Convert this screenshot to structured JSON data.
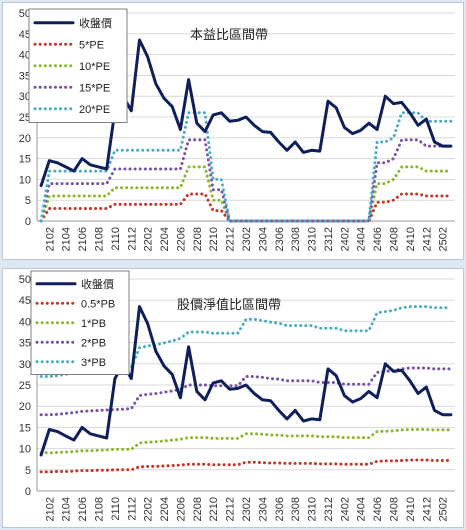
{
  "colors": {
    "price": "#0f1f5c",
    "band1": "#c0392b",
    "band2": "#8ab82f",
    "band3": "#7a52a8",
    "band4": "#4bacc6",
    "grid": "#d9d9d9",
    "axis_text": "#333333",
    "background": "#dfe8f2"
  },
  "chart_data": [
    {
      "type": "line",
      "title": "本益比區間帶",
      "xlabel": "",
      "ylabel": "",
      "ylim": [
        0,
        50
      ],
      "yticks": [
        0,
        5,
        10,
        15,
        20,
        25,
        30,
        35,
        40,
        45,
        50
      ],
      "x": [
        "2101",
        "2102",
        "2103",
        "2104",
        "2105",
        "2106",
        "2107",
        "2108",
        "2109",
        "2110",
        "2111",
        "2112",
        "2201",
        "2202",
        "2203",
        "2204",
        "2205",
        "2206",
        "2207",
        "2208",
        "2209",
        "2210",
        "2211",
        "2212",
        "2301",
        "2302",
        "2303",
        "2304",
        "2305",
        "2306",
        "2307",
        "2308",
        "2309",
        "2310",
        "2311",
        "2312",
        "2401",
        "2402",
        "2403",
        "2404",
        "2405",
        "2406",
        "2407",
        "2408",
        "2409",
        "2410",
        "2411",
        "2412",
        "2501",
        "2502",
        "2503"
      ],
      "xtick_labels": [
        "2102",
        "2104",
        "2106",
        "2108",
        "2110",
        "2112",
        "2202",
        "2204",
        "2206",
        "2208",
        "2210",
        "2212",
        "2302",
        "2304",
        "2306",
        "2308",
        "2310",
        "2312",
        "2402",
        "2404",
        "2406",
        "2408",
        "2410",
        "2412",
        "2502"
      ],
      "grid": true,
      "legend_position": "top-left",
      "series": [
        {
          "name": "收盤價",
          "style": "solid",
          "color_key": "price",
          "values": [
            8.5,
            14.5,
            14,
            13,
            12,
            15,
            13.5,
            13,
            12.5,
            26.5,
            30,
            26.5,
            43.5,
            39.5,
            33,
            29.5,
            27.5,
            22,
            34,
            23.5,
            21.5,
            25.5,
            26,
            24,
            24.2,
            25,
            23,
            21.5,
            21.3,
            19,
            17,
            19,
            16.5,
            17,
            16.8,
            28.8,
            27.2,
            22.5,
            21,
            21.8,
            23.5,
            22,
            30,
            28.2,
            28.5,
            26,
            23,
            24.5,
            19,
            18,
            18
          ]
        },
        {
          "name": "5*PE",
          "style": "dotted",
          "color_key": "band1",
          "values": [
            0,
            3,
            3,
            3,
            3,
            3,
            3,
            3,
            3,
            4,
            4,
            4,
            4,
            4,
            4,
            4,
            4,
            4,
            6.5,
            6.5,
            6.5,
            2.5,
            2.5,
            0,
            0,
            0,
            0,
            0,
            0,
            0,
            0,
            0,
            0,
            0,
            0,
            0,
            0,
            0,
            0,
            0,
            0,
            4.5,
            4.5,
            5,
            6.5,
            6.5,
            6.5,
            6,
            6,
            6,
            6
          ]
        },
        {
          "name": "10*PE",
          "style": "dotted",
          "color_key": "band2",
          "values": [
            0,
            6,
            6,
            6,
            6,
            6,
            6,
            6,
            6,
            8,
            8,
            8,
            8,
            8,
            8,
            8,
            8,
            8,
            13,
            13,
            13,
            5,
            5,
            0,
            0,
            0,
            0,
            0,
            0,
            0,
            0,
            0,
            0,
            0,
            0,
            0,
            0,
            0,
            0,
            0,
            0,
            9,
            9,
            10,
            13,
            13,
            13,
            12,
            12,
            12,
            12
          ]
        },
        {
          "name": "15*PE",
          "style": "dotted",
          "color_key": "band3",
          "values": [
            0,
            9,
            9,
            9,
            9,
            9,
            9,
            9,
            9,
            12.5,
            12.5,
            12.5,
            12.5,
            12.5,
            12.5,
            12.5,
            12.5,
            12.5,
            19.5,
            19.5,
            19.5,
            7.5,
            7.5,
            0,
            0,
            0,
            0,
            0,
            0,
            0,
            0,
            0,
            0,
            0,
            0,
            0,
            0,
            0,
            0,
            0,
            0,
            14,
            14,
            15,
            19.5,
            19.5,
            19.5,
            18,
            18,
            18,
            18
          ]
        },
        {
          "name": "20*PE",
          "style": "dotted",
          "color_key": "band4",
          "values": [
            0,
            12,
            12,
            12,
            12,
            12,
            12,
            12,
            12,
            17,
            17,
            17,
            17,
            17,
            17,
            17,
            17,
            17,
            26,
            26,
            26,
            10,
            10,
            0,
            0,
            0,
            0,
            0,
            0,
            0,
            0,
            0,
            0,
            0,
            0,
            0,
            0,
            0,
            0,
            0,
            0,
            19,
            19,
            20,
            26,
            26,
            26,
            24,
            24,
            24,
            24
          ]
        }
      ]
    },
    {
      "type": "line",
      "title": "股價淨值比區間帶",
      "xlabel": "",
      "ylabel": "",
      "ylim": [
        0,
        50
      ],
      "yticks": [
        0,
        5,
        10,
        15,
        20,
        25,
        30,
        35,
        40,
        45,
        50
      ],
      "x": [
        "2101",
        "2102",
        "2103",
        "2104",
        "2105",
        "2106",
        "2107",
        "2108",
        "2109",
        "2110",
        "2111",
        "2112",
        "2201",
        "2202",
        "2203",
        "2204",
        "2205",
        "2206",
        "2207",
        "2208",
        "2209",
        "2210",
        "2211",
        "2212",
        "2301",
        "2302",
        "2303",
        "2304",
        "2305",
        "2306",
        "2307",
        "2308",
        "2309",
        "2310",
        "2311",
        "2312",
        "2401",
        "2402",
        "2403",
        "2404",
        "2405",
        "2406",
        "2407",
        "2408",
        "2409",
        "2410",
        "2411",
        "2412",
        "2501",
        "2502",
        "2503"
      ],
      "xtick_labels": [
        "2102",
        "2104",
        "2106",
        "2108",
        "2110",
        "2112",
        "2202",
        "2204",
        "2206",
        "2208",
        "2210",
        "2212",
        "2302",
        "2304",
        "2306",
        "2308",
        "2310",
        "2312",
        "2402",
        "2404",
        "2406",
        "2408",
        "2410",
        "2412",
        "2502"
      ],
      "grid": true,
      "legend_position": "top-left",
      "series": [
        {
          "name": "收盤價",
          "style": "solid",
          "color_key": "price",
          "values": [
            8.5,
            14.5,
            14,
            13,
            12,
            15,
            13.5,
            13,
            12.5,
            26.5,
            30,
            26.5,
            43.5,
            39.5,
            33,
            29.5,
            27.5,
            22,
            34,
            23.5,
            21.5,
            25.5,
            26,
            24,
            24.2,
            25,
            23,
            21.5,
            21.3,
            19,
            17,
            19,
            16.5,
            17,
            16.8,
            28.8,
            27.2,
            22.5,
            21,
            21.8,
            23.5,
            22,
            30,
            28.2,
            28.5,
            26,
            23,
            24.5,
            19,
            18,
            18
          ]
        },
        {
          "name": "0.5*PB",
          "style": "dotted",
          "color_key": "band1",
          "values": [
            4.5,
            4.5,
            4.6,
            4.6,
            4.7,
            4.8,
            4.8,
            4.9,
            4.9,
            5,
            5,
            5,
            5.7,
            5.8,
            5.8,
            5.9,
            6,
            6.1,
            6.3,
            6.3,
            6.3,
            6.2,
            6.2,
            6.2,
            6.2,
            6.8,
            6.8,
            6.7,
            6.6,
            6.6,
            6.5,
            6.5,
            6.5,
            6.5,
            6.4,
            6.4,
            6.4,
            6.3,
            6.3,
            6.3,
            6.3,
            7,
            7.1,
            7.1,
            7.2,
            7.3,
            7.3,
            7.3,
            7.2,
            7.2,
            7.2
          ]
        },
        {
          "name": "1*PB",
          "style": "dotted",
          "color_key": "band2",
          "values": [
            9,
            9,
            9.1,
            9.2,
            9.3,
            9.5,
            9.5,
            9.6,
            9.7,
            9.8,
            9.8,
            9.8,
            11.3,
            11.5,
            11.6,
            11.8,
            12,
            12.2,
            12.6,
            12.6,
            12.6,
            12.4,
            12.4,
            12.4,
            12.4,
            13.5,
            13.5,
            13.4,
            13.2,
            13.2,
            13,
            13,
            13,
            13,
            12.8,
            12.8,
            12.8,
            12.6,
            12.6,
            12.6,
            12.6,
            14,
            14.1,
            14.2,
            14.4,
            14.5,
            14.5,
            14.5,
            14.4,
            14.4,
            14.4
          ]
        },
        {
          "name": "2*PB",
          "style": "dotted",
          "color_key": "band3",
          "values": [
            18,
            18,
            18.1,
            18.3,
            18.5,
            18.8,
            18.9,
            19,
            19.1,
            19.2,
            19.3,
            19.4,
            22.5,
            22.8,
            23,
            23.3,
            23.6,
            24,
            25,
            25,
            25,
            24.8,
            24.8,
            24.8,
            24.8,
            27,
            27,
            26.8,
            26.5,
            26.4,
            26,
            26,
            26,
            26,
            25.6,
            25.6,
            25.6,
            25.2,
            25.2,
            25.2,
            25.2,
            28,
            28.2,
            28.4,
            28.8,
            29,
            29,
            29,
            28.8,
            28.8,
            28.8
          ]
        },
        {
          "name": "3*PB",
          "style": "dotted",
          "color_key": "band4",
          "values": [
            27,
            27,
            27.2,
            27.5,
            27.8,
            28.2,
            28.4,
            28.6,
            28.7,
            28.8,
            29,
            29.1,
            33.8,
            34.2,
            34.5,
            34.9,
            35.4,
            36,
            37.5,
            37.5,
            37.5,
            37.2,
            37.2,
            37.2,
            37.2,
            40.5,
            40.5,
            40.2,
            39.8,
            39.6,
            39,
            39,
            39,
            39,
            38.4,
            38.4,
            38.4,
            37.8,
            37.8,
            37.8,
            37.8,
            42,
            42.3,
            42.6,
            43.2,
            43.5,
            43.5,
            43.5,
            43.2,
            43.2,
            43.2
          ]
        }
      ]
    }
  ]
}
